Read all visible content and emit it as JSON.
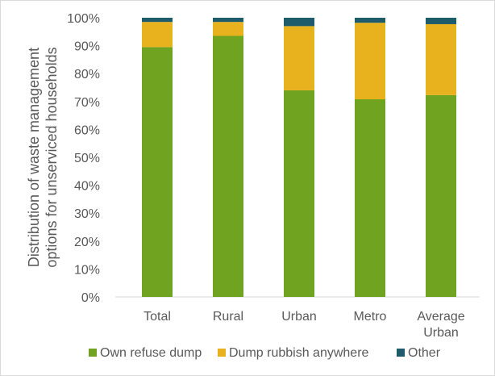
{
  "chart_data": {
    "type": "bar",
    "stacked": true,
    "categories": [
      [
        "Total"
      ],
      [
        "Rural"
      ],
      [
        "Urban"
      ],
      [
        "Metro"
      ],
      [
        "Average",
        "Urban"
      ]
    ],
    "series": [
      {
        "name": "Own refuse dump",
        "color": "#70a31f",
        "values": [
          89.5,
          93.5,
          74,
          70.8,
          72.3
        ]
      },
      {
        "name": "Dump rubbish anywhere",
        "color": "#e8b21e",
        "values": [
          9,
          5,
          23,
          27.4,
          25.4
        ]
      },
      {
        "name": "Other",
        "color": "#1f5c6b",
        "values": [
          1.5,
          1.5,
          3,
          1.8,
          2.3
        ]
      }
    ],
    "ylabel": [
      "Distribution of waste management",
      "options for unserviced households"
    ],
    "ylim": [
      0,
      100
    ],
    "yticks": [
      "0%",
      "10%",
      "20%",
      "30%",
      "40%",
      "50%",
      "60%",
      "70%",
      "80%",
      "90%",
      "100%"
    ],
    "legend_position": "bottom",
    "grid": false
  }
}
